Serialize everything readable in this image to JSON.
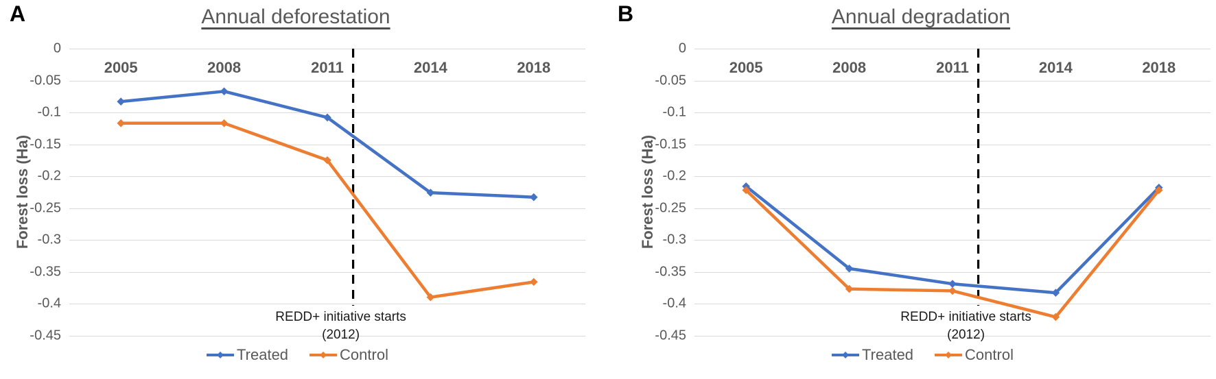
{
  "figure": {
    "background": "#ffffff",
    "colors": {
      "treated": "#4472C4",
      "control": "#ED7D31",
      "gridline": "#d9d9d9",
      "axis_text": "#595959",
      "annotation_line": "#000000",
      "annotation_text": "#1a1a1a"
    }
  },
  "chart_data": [
    {
      "type": "line",
      "panel_label": "A",
      "title": "Annual deforestation",
      "xlabel": "",
      "ylabel": "Forest loss (Ha)",
      "categories": [
        "2005",
        "2008",
        "2011",
        "2014",
        "2018"
      ],
      "series": [
        {
          "name": "Treated",
          "color": "#4472C4",
          "values": [
            -0.083,
            -0.067,
            -0.108,
            -0.226,
            -0.233
          ]
        },
        {
          "name": "Control",
          "color": "#ED7D31",
          "values": [
            -0.117,
            -0.117,
            -0.175,
            -0.39,
            -0.366
          ]
        }
      ],
      "ylim": [
        -0.45,
        0
      ],
      "ytick_values": [
        0,
        -0.05,
        -0.1,
        -0.15,
        -0.2,
        -0.25,
        -0.3,
        -0.35,
        -0.4,
        -0.45
      ],
      "ytick_labels": [
        "0",
        "-0.05",
        "-0.1",
        "-0.15",
        "-0.2",
        "-0.25",
        "-0.3",
        "-0.35",
        "-0.4",
        "-0.45"
      ],
      "grid": true,
      "legend_position": "bottom",
      "legend_entries": [
        "Treated",
        "Control"
      ],
      "annotation": {
        "text_line1": "REDD+ initiative starts",
        "text_line2": "(2012)",
        "line_style": "dashed",
        "x_value": "2012",
        "x_fraction": 0.55
      }
    },
    {
      "type": "line",
      "panel_label": "B",
      "title": "Annual degradation",
      "xlabel": "",
      "ylabel": "Forest loss (Ha)",
      "categories": [
        "2005",
        "2008",
        "2011",
        "2014",
        "2018"
      ],
      "series": [
        {
          "name": "Treated",
          "color": "#4472C4",
          "values": [
            -0.216,
            -0.345,
            -0.369,
            -0.383,
            -0.218
          ]
        },
        {
          "name": "Control",
          "color": "#ED7D31",
          "values": [
            -0.222,
            -0.377,
            -0.38,
            -0.421,
            -0.222
          ]
        }
      ],
      "ylim": [
        -0.45,
        0
      ],
      "ytick_values": [
        0,
        -0.05,
        -0.1,
        -0.15,
        -0.2,
        -0.25,
        -0.3,
        -0.35,
        -0.4,
        -0.45
      ],
      "ytick_labels": [
        "0",
        "-0.05",
        "-0.1",
        "-0.15",
        "-0.2",
        "-0.25",
        "-0.3",
        "-0.35",
        "-0.4",
        "-0.45"
      ],
      "grid": true,
      "legend_position": "bottom",
      "legend_entries": [
        "Treated",
        "Control"
      ],
      "annotation": {
        "text_line1": "REDD+ initiative starts",
        "text_line2": "(2012)",
        "line_style": "dashed",
        "x_value": "2012",
        "x_fraction": 0.55
      }
    }
  ]
}
